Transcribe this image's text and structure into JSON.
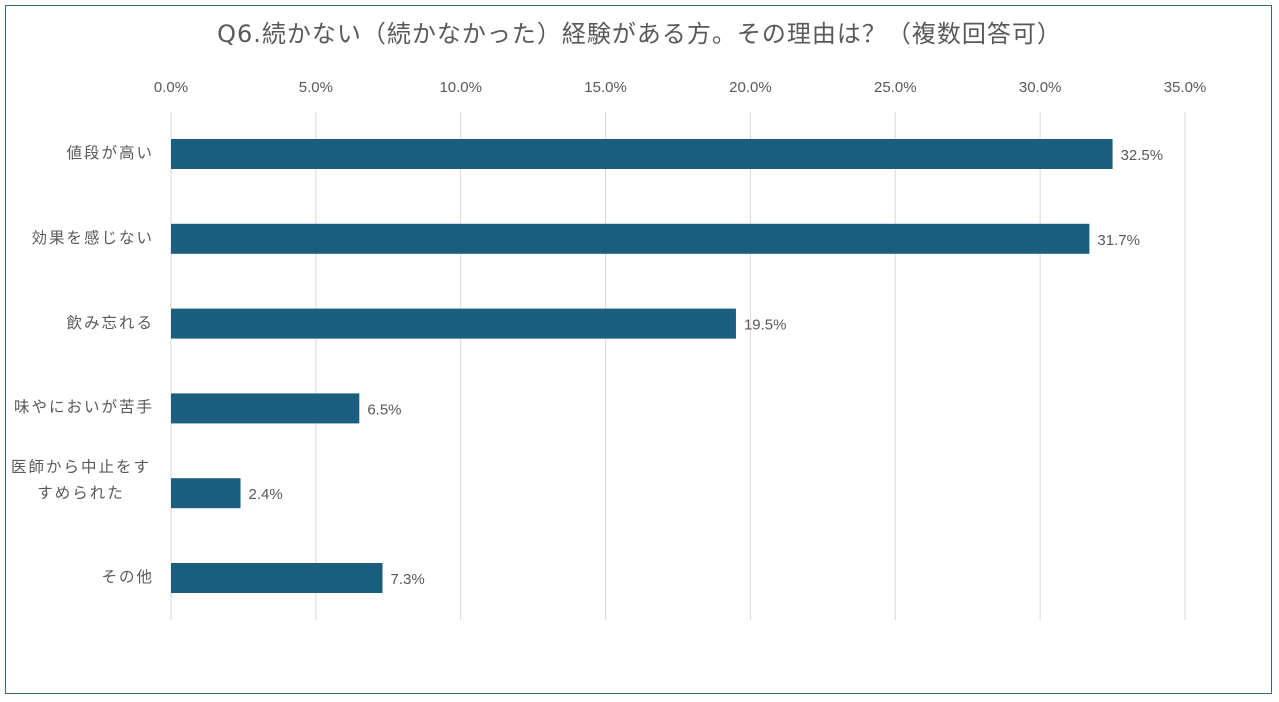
{
  "chart_data": {
    "type": "bar",
    "orientation": "horizontal",
    "title": "Q6.続かない（続かなかった）経験がある方。その理由は？（複数回答可）",
    "categories": [
      "値段が高い",
      "効果を感じない",
      "飲み忘れる",
      "味やにおいが苦手",
      "医師から中止をすすめられた",
      "その他"
    ],
    "values": [
      32.5,
      31.7,
      19.5,
      6.5,
      2.4,
      7.3
    ],
    "data_labels": [
      "32.5%",
      "31.7%",
      "19.5%",
      "6.5%",
      "2.4%",
      "7.3%"
    ],
    "xlim": [
      0,
      35
    ],
    "x_ticks": [
      "0.0%",
      "5.0%",
      "10.0%",
      "15.0%",
      "20.0%",
      "25.0%",
      "30.0%",
      "35.0%"
    ],
    "x_axis_position": "top",
    "grid": true,
    "xlabel": "",
    "ylabel": "",
    "bar_color": "#1a5e80"
  }
}
